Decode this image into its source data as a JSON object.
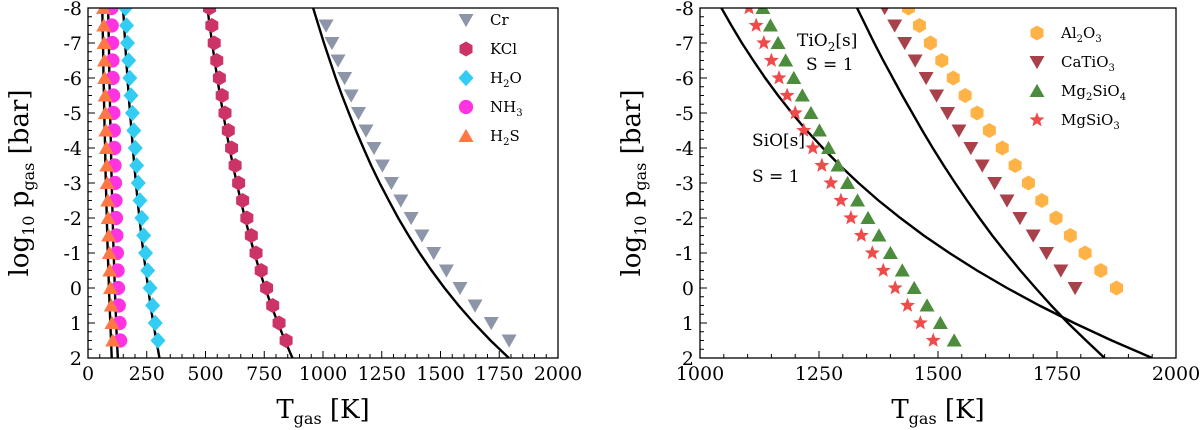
{
  "chart_data": [
    {
      "type": "scatter",
      "panel": "left",
      "xlabel": "T_gas [K]",
      "ylabel": "log10 p_gas [bar]",
      "xlim": [
        0,
        2000
      ],
      "ylim": [
        2,
        -8
      ],
      "xticks": [
        0,
        250,
        500,
        750,
        1000,
        1250,
        1500,
        1750,
        2000
      ],
      "yticks": [
        -8,
        -7,
        -6,
        -5,
        -4,
        -3,
        -2,
        -1,
        0,
        1,
        2
      ],
      "legend_position": "top-right",
      "series": [
        {
          "name": "Cr",
          "label_main": "Cr",
          "label_sub": "",
          "label_tail": "",
          "marker": "triangle-down",
          "color": "#8c96a8",
          "y": [
            -7.5,
            -7,
            -6.5,
            -6,
            -5.5,
            -5,
            -4.5,
            -4,
            -3.5,
            -3,
            -2.5,
            -2,
            -1.5,
            -1,
            -0.5,
            0,
            0.5,
            1,
            1.5
          ],
          "x": [
            1013,
            1038,
            1064,
            1092,
            1120,
            1151,
            1183,
            1217,
            1253,
            1291,
            1331,
            1375,
            1421,
            1471,
            1525,
            1583,
            1647,
            1716,
            1792
          ],
          "curve_x": [
            958,
            981,
            1004,
            1029,
            1054,
            1081,
            1110,
            1140,
            1172,
            1205,
            1241,
            1280,
            1320,
            1364,
            1411,
            1462,
            1517,
            1577,
            1642,
            1713,
            1791
          ]
        },
        {
          "name": "KCl",
          "label_main": "KCl",
          "label_sub": "",
          "label_tail": "",
          "marker": "hexagon",
          "color": "#cc3366",
          "y": [
            -8,
            -7.5,
            -7,
            -6.5,
            -6,
            -5.5,
            -5,
            -4.5,
            -4,
            -3.5,
            -3,
            -2.5,
            -2,
            -1.5,
            -1,
            -0.5,
            0,
            0.5,
            1,
            1.5
          ],
          "x": [
            517,
            527,
            537,
            548,
            559,
            571,
            583,
            597,
            611,
            626,
            641,
            658,
            676,
            695,
            715,
            737,
            760,
            786,
            813,
            843
          ],
          "curve_x": [
            508,
            518,
            528,
            539,
            550,
            562,
            575,
            588,
            602,
            617,
            633,
            650,
            668,
            687,
            708,
            730,
            754,
            780,
            808,
            838,
            870
          ]
        },
        {
          "name": "H2O",
          "label_main": "H",
          "label_sub": "2",
          "label_tail": "O",
          "marker": "diamond",
          "color": "#33ccf2",
          "y": [
            -8,
            -7.5,
            -7,
            -6.5,
            -6,
            -5.5,
            -5,
            -4.5,
            -4,
            -3.5,
            -3,
            -2.5,
            -2,
            -1.5,
            -1,
            -0.5,
            0,
            0.5,
            1,
            1.5
          ],
          "x": [
            159,
            164,
            168,
            173,
            178,
            183,
            189,
            195,
            201,
            207,
            214,
            221,
            229,
            237,
            245,
            254,
            264,
            275,
            286,
            298
          ],
          "curve_x": [
            149,
            154,
            158,
            163,
            168,
            173,
            179,
            185,
            191,
            197,
            204,
            211,
            219,
            227,
            236,
            246,
            256,
            266,
            278,
            291,
            304
          ]
        },
        {
          "name": "NH3",
          "label_main": "NH",
          "label_sub": "3",
          "label_tail": "",
          "marker": "circle",
          "color": "#ff33e0",
          "y": [
            -8,
            -7.5,
            -7,
            -6.5,
            -6,
            -5.5,
            -5,
            -4.5,
            -4,
            -3.5,
            -3,
            -2.5,
            -2,
            -1.5,
            -1,
            -0.5,
            0,
            0.5,
            1,
            1.5
          ],
          "x": [
            100,
            101,
            103,
            104,
            105,
            107,
            108,
            110,
            112,
            113,
            115,
            117,
            119,
            121,
            123,
            126,
            128,
            131,
            134,
            137
          ],
          "curve_x": [
            86,
            87,
            89,
            90,
            91,
            93,
            94,
            96,
            98,
            99,
            101,
            103,
            105,
            107,
            109,
            112,
            114,
            117,
            120,
            123,
            127
          ]
        },
        {
          "name": "H2S",
          "label_main": "H",
          "label_sub": "2",
          "label_tail": "S",
          "marker": "triangle-up",
          "color": "#ff7744",
          "y": [
            -8,
            -7.5,
            -7,
            -6.5,
            -6,
            -5.5,
            -5,
            -4.5,
            -4,
            -3.5,
            -3,
            -2.5,
            -2,
            -1.5,
            -1,
            -0.5,
            0,
            0.5,
            1,
            1.5
          ],
          "x": [
            66,
            67,
            69,
            70,
            71,
            73,
            74,
            76,
            78,
            80,
            82,
            84,
            86,
            88,
            91,
            93,
            96,
            99,
            102,
            105
          ],
          "curve_x": [
            61,
            62,
            64,
            65,
            66,
            68,
            69,
            71,
            73,
            74,
            76,
            78,
            80,
            82,
            84,
            87,
            89,
            92,
            95,
            98,
            101
          ]
        }
      ]
    },
    {
      "type": "scatter",
      "panel": "right",
      "xlabel": "T_gas [K]",
      "ylabel": "log10 p_gas [bar]",
      "xlim": [
        1000,
        2000
      ],
      "ylim": [
        2,
        -8
      ],
      "xticks": [
        1000,
        1250,
        1500,
        1750,
        2000
      ],
      "yticks": [
        -8,
        -7,
        -6,
        -5,
        -4,
        -3,
        -2,
        -1,
        0,
        1,
        2
      ],
      "legend_position": "top-right",
      "series": [
        {
          "name": "Al2O3",
          "label_main": "Al",
          "label_sub": "2",
          "label_tail": "O",
          "label_sub2": "3",
          "marker": "hexagon",
          "color": "#ffb347",
          "y": [
            -8,
            -7.5,
            -7,
            -6.5,
            -6,
            -5.5,
            -5,
            -4.5,
            -4,
            -3.5,
            -3,
            -2.5,
            -2,
            -1.5,
            -1,
            -0.5,
            0
          ],
          "x": [
            1438,
            1461,
            1484,
            1508,
            1532,
            1557,
            1582,
            1608,
            1635,
            1662,
            1690,
            1718,
            1748,
            1778,
            1809,
            1842,
            1875
          ]
        },
        {
          "name": "CaTiO3",
          "label_main": "CaTiO",
          "label_sub": "3",
          "label_tail": "",
          "marker": "triangle-down",
          "color": "#a8414a",
          "y": [
            -8,
            -7.5,
            -7,
            -6.5,
            -6,
            -5.5,
            -5,
            -4.5,
            -4,
            -3.5,
            -3,
            -2.5,
            -2,
            -1.5,
            -1,
            -0.5,
            0
          ],
          "x": [
            1388,
            1409,
            1430,
            1452,
            1475,
            1497,
            1520,
            1544,
            1569,
            1593,
            1619,
            1645,
            1672,
            1700,
            1728,
            1758,
            1788
          ]
        },
        {
          "name": "Mg2SiO4",
          "label_main": "Mg",
          "label_sub": "2",
          "label_tail": "SiO",
          "label_sub2": "4",
          "marker": "triangle-up",
          "color": "#4c8c3c",
          "y": [
            -8,
            -7.5,
            -7,
            -6.5,
            -6,
            -5.5,
            -5,
            -4.5,
            -4,
            -3.5,
            -3,
            -2.5,
            -2,
            -1.5,
            -1,
            -0.5,
            0,
            0.5,
            1,
            1.5
          ],
          "x": [
            1132,
            1148,
            1164,
            1180,
            1197,
            1215,
            1233,
            1251,
            1270,
            1290,
            1310,
            1331,
            1353,
            1376,
            1400,
            1425,
            1450,
            1477,
            1505,
            1534
          ]
        },
        {
          "name": "MgSiO3",
          "label_main": "MgSiO",
          "label_sub": "3",
          "label_tail": "",
          "marker": "star",
          "color": "#f04b4b",
          "y": [
            -8,
            -7.5,
            -7,
            -6.5,
            -6,
            -5.5,
            -5,
            -4.5,
            -4,
            -3.5,
            -3,
            -2.5,
            -2,
            -1.5,
            -1,
            -0.5,
            0,
            0.5,
            1,
            1.5
          ],
          "x": [
            1103,
            1118,
            1134,
            1150,
            1166,
            1183,
            1200,
            1218,
            1237,
            1256,
            1275,
            1296,
            1317,
            1339,
            1362,
            1385,
            1410,
            1436,
            1463,
            1490
          ]
        }
      ],
      "curves": [
        {
          "name": "TiO2[s] S = 1",
          "y": [
            -8,
            -7.5,
            -7,
            -6.5,
            -6,
            -5.5,
            -5,
            -4.5,
            -4,
            -3.5,
            -3,
            -2.5,
            -2,
            -1.5,
            -1,
            -0.5,
            0,
            0.5,
            1,
            1.5,
            2
          ],
          "x": [
            1330,
            1348,
            1366,
            1385,
            1405,
            1425,
            1446,
            1467,
            1489,
            1512,
            1536,
            1561,
            1587,
            1614,
            1643,
            1673,
            1705,
            1738,
            1773,
            1811,
            1850
          ]
        },
        {
          "name": "SiO[s] S = 1",
          "y": [
            -8,
            -7.5,
            -7,
            -6.5,
            -6,
            -5.5,
            -5,
            -4.5,
            -4,
            -3.5,
            -3,
            -2.5,
            -2,
            -1.5,
            -1,
            -0.5,
            0,
            0.5,
            1,
            1.5,
            2
          ],
          "x": [
            1045,
            1066,
            1088,
            1112,
            1137,
            1164,
            1193,
            1224,
            1258,
            1294,
            1333,
            1375,
            1421,
            1470,
            1524,
            1582,
            1645,
            1713,
            1786,
            1865,
            1950
          ]
        }
      ]
    }
  ],
  "left_panel": {
    "xlabel": {
      "main": "T",
      "sub": "gas",
      "tail": " [K]"
    },
    "ylabel": {
      "main": "log",
      "sub": "10",
      "mid": " p",
      "sub2": "gas",
      "tail": " [bar]"
    }
  },
  "right_panel": {
    "xlabel": {
      "main": "T",
      "sub": "gas",
      "tail": " [K]"
    },
    "ylabel": {
      "main": "log",
      "sub": "10",
      "mid": " p",
      "sub2": "gas",
      "tail": " [bar]"
    },
    "annotations": {
      "tio2": {
        "main": "TiO",
        "sub": "2",
        "tail": "[s]",
        "line2": "S = 1"
      },
      "sio": {
        "line1": "SiO[s]",
        "line2": "S = 1"
      }
    }
  }
}
